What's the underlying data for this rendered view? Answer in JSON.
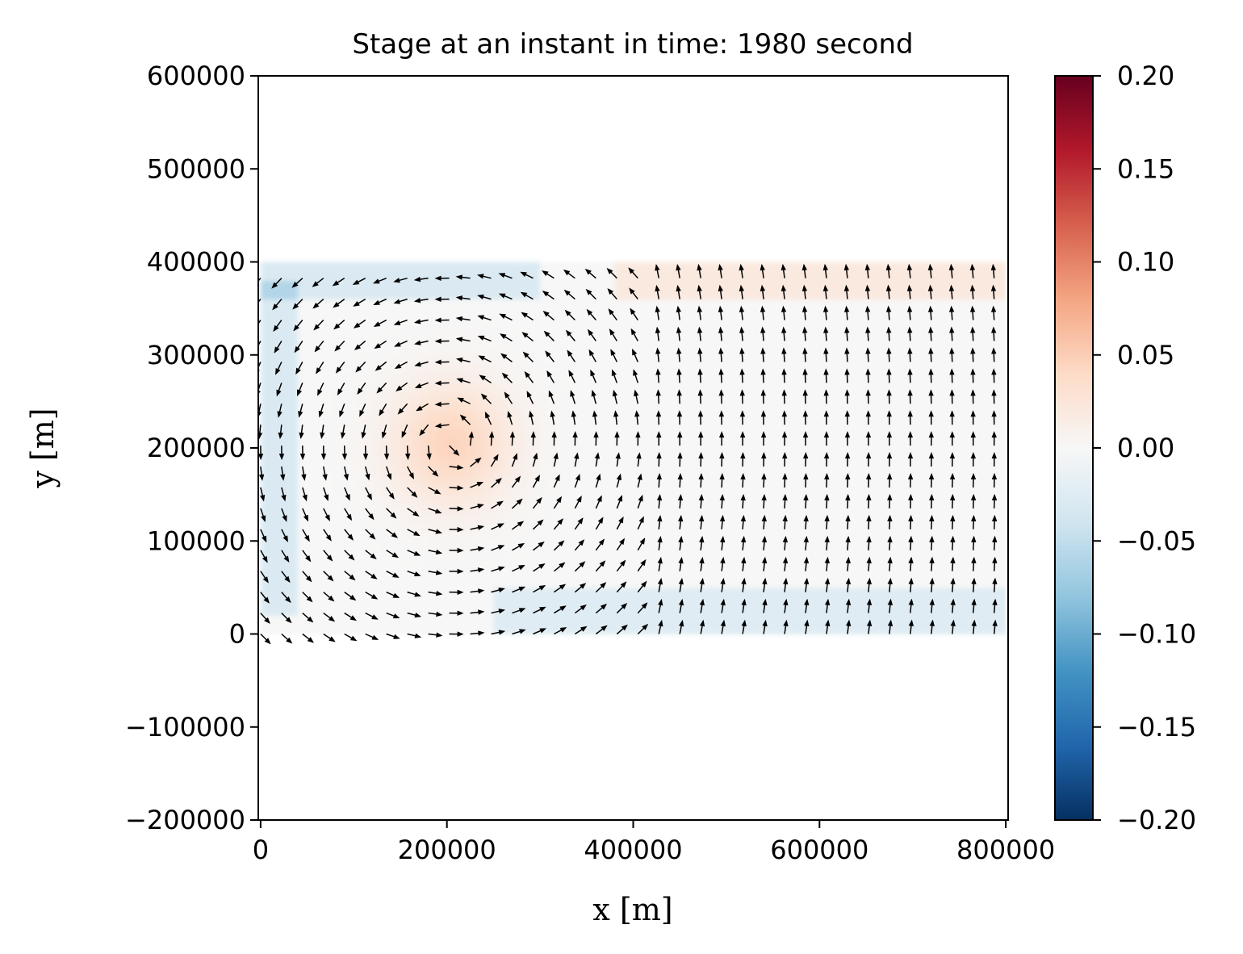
{
  "chart_data": {
    "type": "heatmap",
    "title": "Stage at an instant in time: 1980 second",
    "xlabel": "x [m]",
    "ylabel": "y [m]",
    "xlim": [
      -2500,
      802500
    ],
    "ylim": [
      -200000,
      600000
    ],
    "xticks": [
      0,
      200000,
      400000,
      600000,
      800000
    ],
    "xtick_labels": [
      "0",
      "200000",
      "400000",
      "600000",
      "800000"
    ],
    "yticks": [
      -200000,
      -100000,
      0,
      100000,
      200000,
      300000,
      400000,
      500000,
      600000
    ],
    "ytick_labels": [
      "−200000",
      "−100000",
      "0",
      "100000",
      "200000",
      "300000",
      "400000",
      "500000",
      "600000"
    ],
    "domain": {
      "x": [
        0,
        800000
      ],
      "y": [
        0,
        400000
      ]
    },
    "field": {
      "name": "stage",
      "background": 0.0,
      "features": [
        {
          "kind": "bump",
          "x": 205000,
          "y": 205000,
          "radius": 65000,
          "amplitude": 0.045
        },
        {
          "kind": "band",
          "axis": "x",
          "from": 0,
          "to": 40000,
          "y_from": 20000,
          "y_to": 380000,
          "amplitude": -0.03
        },
        {
          "kind": "band",
          "axis": "y",
          "from": 0,
          "to": 45000,
          "x_from": 250000,
          "x_to": 800000,
          "amplitude": -0.025
        },
        {
          "kind": "band",
          "axis": "y",
          "from": 360000,
          "to": 400000,
          "x_from": 0,
          "x_to": 300000,
          "amplitude": -0.03
        },
        {
          "kind": "band",
          "axis": "y",
          "from": 365000,
          "to": 400000,
          "x_from": 380000,
          "x_to": 800000,
          "amplitude": 0.02
        }
      ]
    },
    "quiver": {
      "grid_spacing": 22500,
      "vortex_center": [
        205000,
        205000
      ],
      "rotation": "counterclockwise",
      "color": "#000000"
    },
    "colorbar": {
      "colormap": "RdBu_r",
      "min": -0.2,
      "max": 0.2,
      "ticks": [
        -0.2,
        -0.15,
        -0.1,
        -0.05,
        0.0,
        0.05,
        0.1,
        0.15,
        0.2
      ],
      "tick_labels": [
        "−0.20",
        "−0.15",
        "−0.10",
        "−0.05",
        "0.00",
        "0.05",
        "0.10",
        "0.15",
        "0.20"
      ]
    },
    "grid": false
  }
}
